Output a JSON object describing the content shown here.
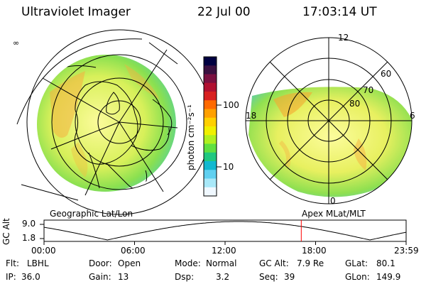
{
  "header": {
    "title": "Ultraviolet Imager",
    "date": "22 Jul 00",
    "time": "17:03:14 UT"
  },
  "colorbar": {
    "label": "photon cm⁻²s⁻¹",
    "ticks": [
      "100",
      "10"
    ],
    "colors": [
      "#000040",
      "#3a1040",
      "#7a1040",
      "#b01030",
      "#d82020",
      "#ff6a00",
      "#ffa000",
      "#ffd000",
      "#f0f000",
      "#b0f020",
      "#60e040",
      "#20c880",
      "#10b8d0",
      "#60d0f0",
      "#a8e8f8",
      "#f0f8ff"
    ]
  },
  "left_map": {
    "label": "Geographic Lat/Lon",
    "corner_mark": "∞"
  },
  "right_map": {
    "label": "Apex MLat/MLT",
    "lat_labels": [
      "80",
      "70",
      "60"
    ],
    "mlt_labels": {
      "top": "12",
      "left": "18",
      "right": "6",
      "bottom": "0"
    }
  },
  "altitude_plot": {
    "axis_label": "GC Alt",
    "y_ticks": [
      "9.0",
      "1.8"
    ],
    "x_ticks": [
      "00:00",
      "06:00",
      "12:00",
      "18:00",
      "23:59"
    ],
    "marker_time": "17:03",
    "marker_color": "#ff0000"
  },
  "status": {
    "row1": [
      {
        "key": "Flt:",
        "value": "LBHL"
      },
      {
        "key": "Door:",
        "value": "Open"
      },
      {
        "key": "Mode:",
        "value": "Normal"
      },
      {
        "key": "GC Alt:",
        "value": "7.9 Re"
      },
      {
        "key": "GLat:",
        "value": "80.1"
      }
    ],
    "row2": [
      {
        "key": "IP:",
        "value": "36.0"
      },
      {
        "key": "Gain:",
        "value": "13"
      },
      {
        "key": "Dsp:",
        "value": "3.2"
      },
      {
        "key": "Seq:",
        "value": "39"
      },
      {
        "key": "GLon:",
        "value": "149.9"
      }
    ]
  }
}
